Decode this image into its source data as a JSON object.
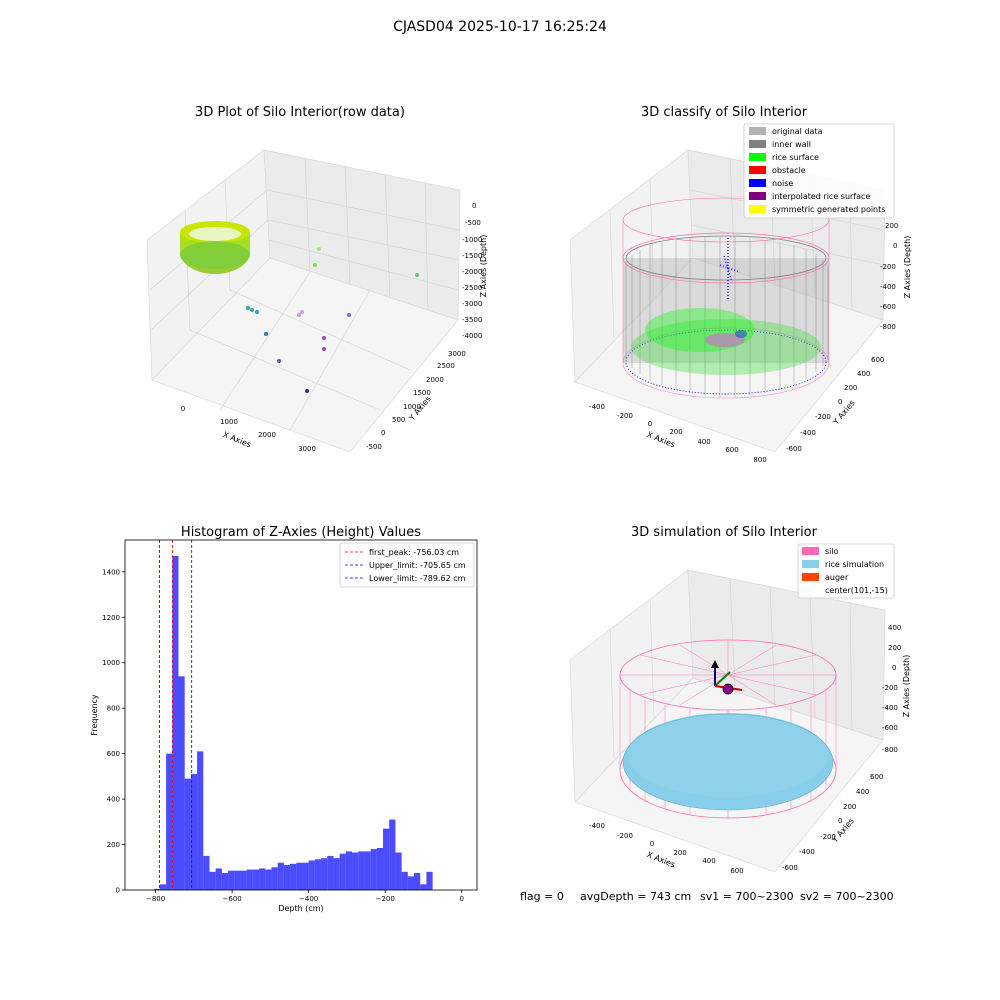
{
  "suptitle": "CJASD04 2025-10-17 16:25:24",
  "footer": {
    "flag": "flag = 0",
    "avg_depth": "avgDepth = 743 cm",
    "sv1": "sv1 = 700~2300",
    "sv2": "sv2 = 700~2300"
  },
  "panels": {
    "raw": {
      "title": "3D Plot of Silo Interior(row data)",
      "xlabel": "X Axies",
      "ylabel": "Y Axies",
      "zlabel": "Z Axies (Depth)",
      "xticks": [
        "0",
        "1000",
        "2000",
        "3000"
      ],
      "yticks": [
        "-500",
        "0",
        "500",
        "1000",
        "1500",
        "2000",
        "2500",
        "3000"
      ],
      "zticks": [
        "0",
        "-500",
        "-1000",
        "-1500",
        "-2000",
        "-2500",
        "-3000",
        "-3500",
        "-4000"
      ]
    },
    "classify": {
      "title": "3D classify of Silo Interior",
      "xlabel": "X Axies",
      "ylabel": "Y Axies",
      "zlabel": "Z Axies (Depth)",
      "xticks": [
        "-400",
        "-200",
        "0",
        "200",
        "400",
        "600",
        "800"
      ],
      "yticks": [
        "-600",
        "-400",
        "-200",
        "0",
        "200",
        "400",
        "600"
      ],
      "zticks": [
        "200",
        "0",
        "-200",
        "-400",
        "-600",
        "-800"
      ],
      "legend": [
        {
          "label": "original data",
          "color": "#b3b3b3"
        },
        {
          "label": "inner wall",
          "color": "#808080"
        },
        {
          "label": "rice surface",
          "color": "#00ff00"
        },
        {
          "label": "obstacle",
          "color": "#ff0000"
        },
        {
          "label": "noise",
          "color": "#0000ff"
        },
        {
          "label": "interpolated rice surface",
          "color": "#800080"
        },
        {
          "label": "symmetric generated points",
          "color": "#ffff00"
        }
      ]
    },
    "simulation": {
      "title": "3D simulation of Silo Interior",
      "xlabel": "X Axies",
      "ylabel": "Y Axies",
      "zlabel": "Z Axies (Depth)",
      "xticks": [
        "-400",
        "-200",
        "0",
        "200",
        "400",
        "600"
      ],
      "yticks": [
        "-600",
        "-400",
        "-200",
        "0",
        "200",
        "400",
        "600"
      ],
      "zticks": [
        "400",
        "200",
        "0",
        "-200",
        "-400",
        "-600",
        "-800"
      ],
      "legend": [
        {
          "label": "silo",
          "color": "#ff69b4"
        },
        {
          "label": "rice simulation",
          "color": "#87ceeb"
        },
        {
          "label": "auger",
          "color": "#ff4500"
        },
        {
          "label": "center(101,-15)",
          "color": ""
        }
      ]
    }
  },
  "chart_data": {
    "type": "bar",
    "title": "Histogram of Z-Axies (Height) Values",
    "xlabel": "Depth (cm)",
    "ylabel": "Frequency",
    "xlim": [
      -880,
      40
    ],
    "ylim": [
      0,
      1540
    ],
    "xticks": [
      -800,
      -600,
      -400,
      -200,
      0
    ],
    "yticks": [
      0,
      200,
      400,
      600,
      800,
      1000,
      1200,
      1400
    ],
    "bar_color": "#0000ff",
    "bin_width": 16.2,
    "bin_start": -805,
    "values": [
      5,
      25,
      600,
      1470,
      940,
      490,
      510,
      610,
      150,
      80,
      95,
      75,
      85,
      85,
      85,
      90,
      90,
      95,
      90,
      100,
      120,
      110,
      115,
      120,
      120,
      130,
      135,
      140,
      150,
      140,
      160,
      170,
      165,
      170,
      170,
      180,
      185,
      270,
      310,
      165,
      80,
      60,
      75,
      25,
      80
    ],
    "lines": [
      {
        "label": "first_peak: -756.03 cm",
        "x": -756.03,
        "color": "#ff0000"
      },
      {
        "label": "Upper_limit: -705.65 cm",
        "x": -705.65,
        "color": "#0000ff"
      },
      {
        "label": "Lower_limit: -789.62 cm",
        "x": -789.62,
        "color": "#0000ff"
      }
    ]
  }
}
